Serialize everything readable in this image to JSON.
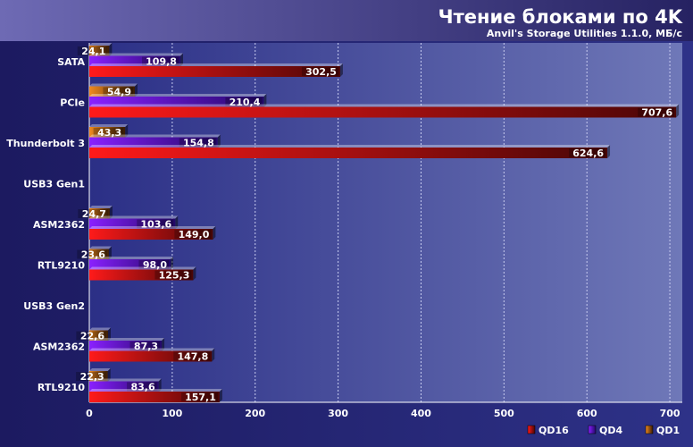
{
  "chart_data": {
    "type": "bar",
    "orientation": "horizontal",
    "title": "Чтение блоками по 4K",
    "subtitle": "Anvil's Storage Utilities 1.1.0, МБ/с",
    "categories": [
      "SATA",
      "PCIe",
      "Thunderbolt 3",
      "USB3 Gen1",
      "ASM2362",
      "RTL9210",
      "USB3 Gen2",
      "ASM2362",
      "RTL9210"
    ],
    "series": [
      {
        "name": "QD1",
        "color": "#e07818",
        "values": [
          24.1,
          54.9,
          43.3,
          null,
          24.7,
          23.6,
          null,
          22.6,
          22.3
        ]
      },
      {
        "name": "QD4",
        "color": "#7a18e8",
        "values": [
          109.8,
          210.4,
          154.8,
          null,
          103.6,
          98.0,
          null,
          87.3,
          83.6
        ]
      },
      {
        "name": "QD16",
        "color": "#e01010",
        "values": [
          302.5,
          707.6,
          624.6,
          null,
          149.0,
          125.3,
          null,
          147.8,
          157.1
        ]
      }
    ],
    "value_labels": [
      [
        "24,1",
        "54,9",
        "43,3",
        "",
        "24,7",
        "23,6",
        "",
        "22,6",
        "22,3"
      ],
      [
        "109,8",
        "210,4",
        "154,8",
        "",
        "103,6",
        "98,0",
        "",
        "87,3",
        "83,6"
      ],
      [
        "302,5",
        "707,6",
        "624,6",
        "",
        "149,0",
        "125,3",
        "",
        "147,8",
        "157,1"
      ]
    ],
    "xticks": [
      0,
      100,
      200,
      300,
      400,
      500,
      600,
      700
    ],
    "xlim": [
      0,
      715
    ],
    "grid": true,
    "legend_order": [
      "QD16",
      "QD4",
      "QD1"
    ],
    "legend_position": "bottom-right"
  }
}
